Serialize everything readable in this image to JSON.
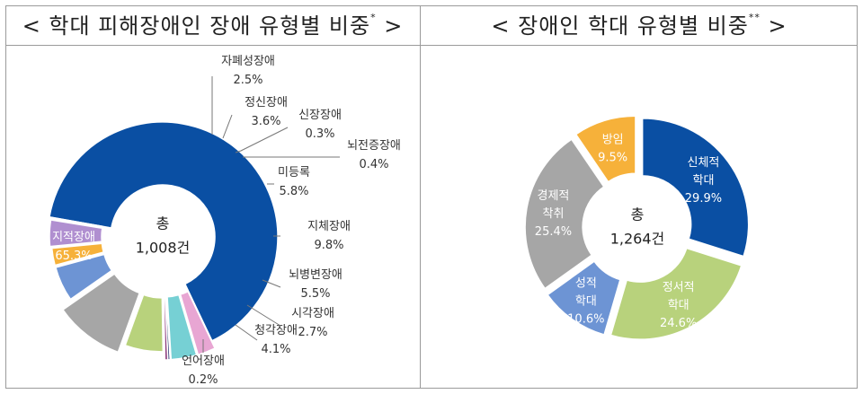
{
  "left_title": {
    "text": "< 학대 피해장애인 장애 유형별 비중",
    "mark": "*",
    "close": " >"
  },
  "right_title": {
    "text": "< 장애인 학대 유형별 비중",
    "mark": "**",
    "close": " >"
  },
  "chart_data": [
    {
      "type": "donut",
      "title": "< 학대 피해장애인 장애 유형별 비중* >",
      "center": {
        "line1": "총",
        "line2": "1,008건"
      },
      "slices": [
        {
          "name": "지적장애",
          "value": 65.3,
          "label": "65.3%",
          "color": "#0a4fa3",
          "label_color": "#ffffff"
        },
        {
          "name": "자폐성장애",
          "value": 2.5,
          "label": "2.5%",
          "color": "#e8a6d3",
          "label_color": "#333333"
        },
        {
          "name": "정신장애",
          "value": 3.6,
          "label": "3.6%",
          "color": "#76d0d4",
          "label_color": "#333333"
        },
        {
          "name": "신장장애",
          "value": 0.3,
          "label": "0.3%",
          "color": "#1d2d6b",
          "label_color": "#333333"
        },
        {
          "name": "뇌전증장애",
          "value": 0.4,
          "label": "0.4%",
          "color": "#8b3a7a",
          "label_color": "#333333"
        },
        {
          "name": "미등록",
          "value": 5.8,
          "label": "5.8%",
          "color": "#b8d27c",
          "label_color": "#333333"
        },
        {
          "name": "지체장애",
          "value": 9.8,
          "label": "9.8%",
          "color": "#a6a6a6",
          "label_color": "#333333"
        },
        {
          "name": "뇌병변장애",
          "value": 5.5,
          "label": "5.5%",
          "color": "#6d94d4",
          "label_color": "#333333"
        },
        {
          "name": "시각장애",
          "value": 2.7,
          "label": "2.7%",
          "color": "#f6b13a",
          "label_color": "#333333"
        },
        {
          "name": "청각장애",
          "value": 4.1,
          "label": "4.1%",
          "color": "#b08fd0",
          "label_color": "#333333"
        },
        {
          "name": "언어장애",
          "value": 0.2,
          "label": "0.2%",
          "color": "#3aa53a",
          "label_color": "#333333"
        }
      ]
    },
    {
      "type": "donut",
      "title": "< 장애인 학대 유형별 비중** >",
      "center": {
        "line1": "총",
        "line2": "1,264건"
      },
      "slices": [
        {
          "name": "신체적 학대",
          "lines": [
            "신체적",
            "학대"
          ],
          "value": 29.9,
          "label": "29.9%",
          "color": "#0a4fa3",
          "label_color": "#ffffff"
        },
        {
          "name": "정서적 학대",
          "lines": [
            "정서적",
            "학대"
          ],
          "value": 24.6,
          "label": "24.6%",
          "color": "#b8d27c",
          "label_color": "#ffffff"
        },
        {
          "name": "성적 학대",
          "lines": [
            "성적",
            "학대"
          ],
          "value": 10.6,
          "label": "10.6%",
          "color": "#6d94d4",
          "label_color": "#ffffff"
        },
        {
          "name": "경제적 착취",
          "lines": [
            "경제적",
            "착취"
          ],
          "value": 25.4,
          "label": "25.4%",
          "color": "#a6a6a6",
          "label_color": "#ffffff"
        },
        {
          "name": "방임",
          "lines": [
            "방임"
          ],
          "value": 9.5,
          "label": "9.5%",
          "color": "#f6b13a",
          "label_color": "#ffffff"
        }
      ]
    }
  ]
}
